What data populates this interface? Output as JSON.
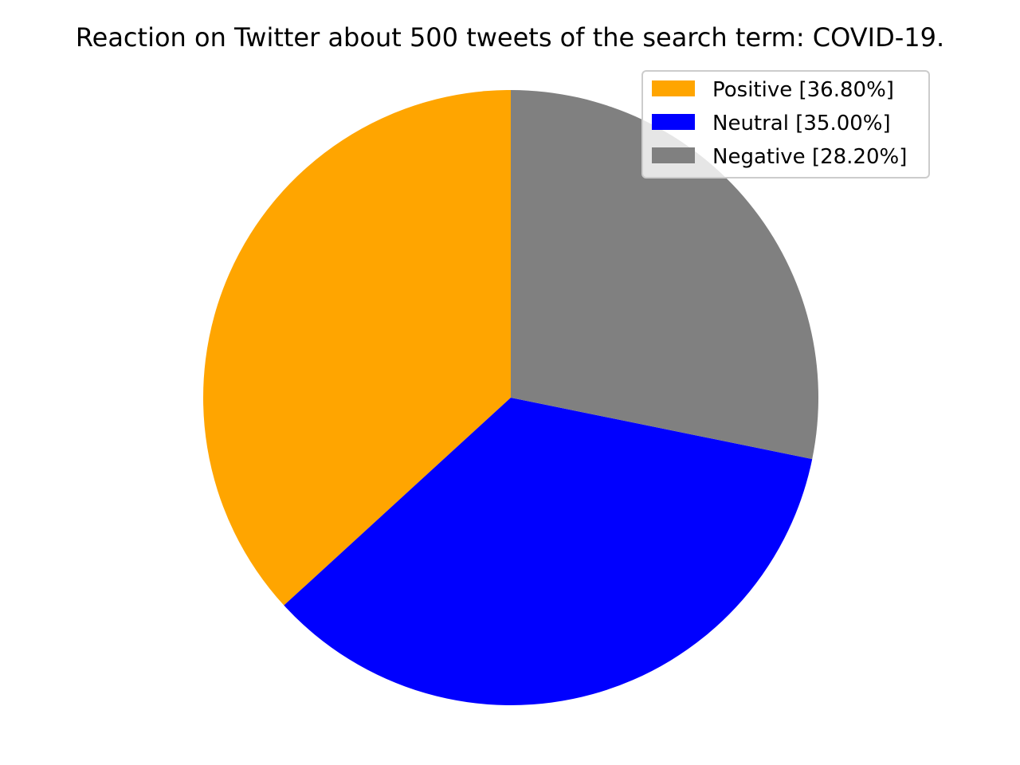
{
  "chart_data": {
    "type": "pie",
    "title": "Reaction on Twitter about 500 tweets of the search term: COVID-19.",
    "start_angle_deg": 90,
    "direction": "counterclockwise",
    "legend_placement": "top-right",
    "slices": [
      {
        "label": "Positive [36.80%]",
        "value": 36.8,
        "color": "#ffa500"
      },
      {
        "label": "Neutral [35.00%]",
        "value": 35.0,
        "color": "#0000ff"
      },
      {
        "label": "Negative [28.20%]",
        "value": 28.2,
        "color": "#808080"
      }
    ]
  }
}
